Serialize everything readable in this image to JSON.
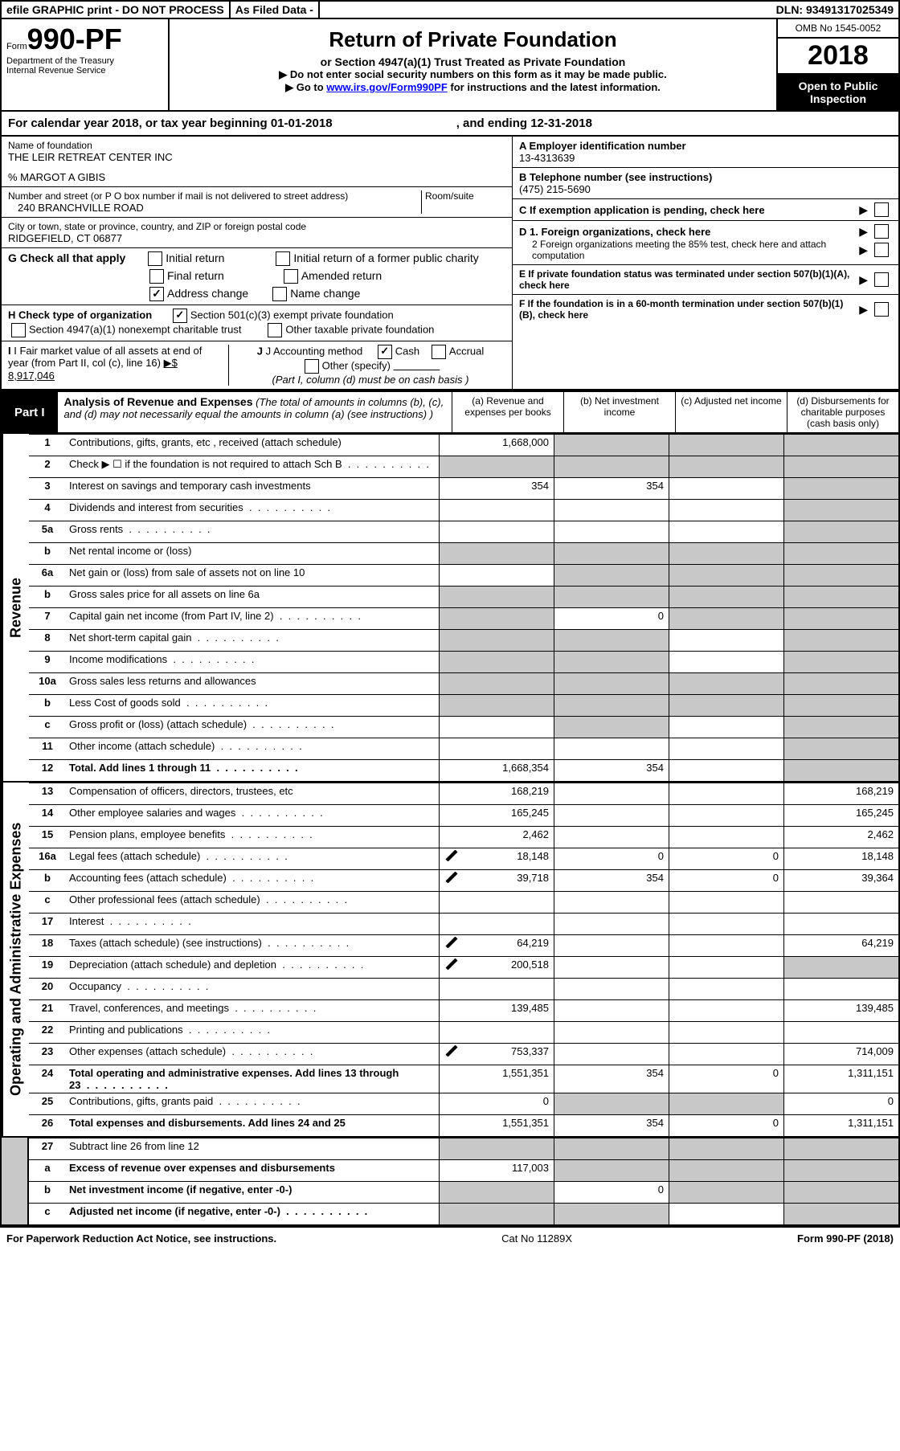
{
  "colors": {
    "ink": "#000000",
    "paper": "#ffffff",
    "shade": "#c8c8c8",
    "link": "#0000ff"
  },
  "top": {
    "efile": "efile GRAPHIC print - DO NOT PROCESS",
    "asfiled": "As Filed Data -",
    "dln": "DLN: 93491317025349"
  },
  "head": {
    "form_prefix": "Form",
    "form_no": "990-PF",
    "dept1": "Department of the Treasury",
    "dept2": "Internal Revenue Service",
    "title": "Return of Private Foundation",
    "subtitle": "or Section 4947(a)(1) Trust Treated as Private Foundation",
    "instr1": "▶ Do not enter social security numbers on this form as it may be made public.",
    "instr2_pre": "▶ Go to ",
    "instr2_link": "www.irs.gov/Form990PF",
    "instr2_post": " for instructions and the latest information.",
    "omb": "OMB No  1545-0052",
    "year": "2018",
    "open": "Open to Public Inspection"
  },
  "cal": {
    "pre": "For calendar year 2018, or tax year beginning ",
    "begin": "01-01-2018",
    "mid": ", and ending ",
    "end": "12-31-2018"
  },
  "id_left": {
    "name_lbl": "Name of foundation",
    "name1": "THE LEIR RETREAT CENTER INC",
    "name2": "% MARGOT A GIBIS",
    "street_lbl": "Number and street (or P O  box number if mail is not delivered to street address)",
    "room_lbl": "Room/suite",
    "street": "240 BRANCHVILLE ROAD",
    "city_lbl": "City or town, state or province, country, and ZIP or foreign postal code",
    "city": "RIDGEFIELD, CT  06877"
  },
  "id_right": {
    "a_lbl": "A Employer identification number",
    "a_val": "13-4313639",
    "b_lbl": "B Telephone number (see instructions)",
    "b_val": "(475) 215-5690",
    "c_lbl": "C  If exemption application is pending, check here",
    "d1": "D 1. Foreign organizations, check here",
    "d2": "2  Foreign organizations meeting the 85% test, check here and attach computation",
    "e": "E  If private foundation status was terminated under section 507(b)(1)(A), check here",
    "f": "F  If the foundation is in a 60-month termination under section 507(b)(1)(B), check here"
  },
  "g": {
    "label": "G Check all that apply",
    "initial": "Initial return",
    "initial_former": "Initial return of a former public charity",
    "final": "Final return",
    "amended": "Amended return",
    "address": "Address change",
    "address_checked": "✓",
    "name": "Name change"
  },
  "h": {
    "label": "H Check type of organization",
    "s501": "Section 501(c)(3) exempt private foundation",
    "s501_checked": "✓",
    "s4947": "Section 4947(a)(1) nonexempt charitable trust",
    "other": "Other taxable private foundation"
  },
  "ij": {
    "i_lbl": "I Fair market value of all assets at end of year (from Part II, col  (c), line 16) ",
    "i_val": "▶$  8,917,046",
    "j_lbl": "J Accounting method",
    "cash": "Cash",
    "cash_checked": "✓",
    "accrual": "Accrual",
    "other": "Other (specify)",
    "note": "(Part I, column (d) must be on cash basis )"
  },
  "part1": {
    "tag": "Part I",
    "title": "Analysis of Revenue and Expenses",
    "note": " (The total of amounts in columns (b), (c), and (d) may not necessarily equal the amounts in column (a) (see instructions) )",
    "col_a": "(a)   Revenue and expenses per books",
    "col_b": "(b)  Net investment income",
    "col_c": "(c)  Adjusted net income",
    "col_d": "(d)  Disbursements for charitable purposes (cash basis only)"
  },
  "rev_label": "Revenue",
  "exp_label": "Operating and Administrative Expenses",
  "rows_rev": [
    {
      "n": "1",
      "d": "",
      "a": "1,668,000",
      "b": "",
      "c": "",
      "grey_b": true,
      "grey_c": true,
      "grey_d": true
    },
    {
      "n": "2",
      "d": "",
      "a": "",
      "b": "",
      "c": "",
      "dots": true,
      "grey_a": true,
      "grey_b": true,
      "grey_c": true,
      "grey_d": true
    },
    {
      "n": "3",
      "d": "",
      "a": "354",
      "b": "354",
      "c": "",
      "grey_d": true
    },
    {
      "n": "4",
      "d": "",
      "a": "",
      "b": "",
      "c": "",
      "dots": true,
      "grey_d": true
    },
    {
      "n": "5a",
      "d": "",
      "a": "",
      "b": "",
      "c": "",
      "dots": true,
      "grey_d": true
    },
    {
      "n": "b",
      "d": "",
      "a": "",
      "b": "",
      "c": "",
      "grey_a": true,
      "grey_b": true,
      "grey_c": true,
      "grey_d": true
    },
    {
      "n": "6a",
      "d": "",
      "a": "",
      "b": "",
      "c": "",
      "grey_b": true,
      "grey_c": true,
      "grey_d": true
    },
    {
      "n": "b",
      "d": "",
      "a": "",
      "b": "",
      "c": "",
      "grey_a": true,
      "grey_b": true,
      "grey_c": true,
      "grey_d": true
    },
    {
      "n": "7",
      "d": "",
      "a": "",
      "b": "0",
      "c": "",
      "dots": true,
      "grey_a": true,
      "grey_c": true,
      "grey_d": true
    },
    {
      "n": "8",
      "d": "",
      "a": "",
      "b": "",
      "c": "",
      "dots": true,
      "grey_a": true,
      "grey_b": true,
      "grey_d": true
    },
    {
      "n": "9",
      "d": "",
      "a": "",
      "b": "",
      "c": "",
      "dots": true,
      "grey_a": true,
      "grey_b": true,
      "grey_d": true
    },
    {
      "n": "10a",
      "d": "",
      "a": "",
      "b": "",
      "c": "",
      "grey_a": true,
      "grey_b": true,
      "grey_c": true,
      "grey_d": true
    },
    {
      "n": "b",
      "d": "",
      "a": "",
      "b": "",
      "c": "",
      "dots": true,
      "grey_a": true,
      "grey_b": true,
      "grey_c": true,
      "grey_d": true
    },
    {
      "n": "c",
      "d": "",
      "a": "",
      "b": "",
      "c": "",
      "dots": true,
      "grey_b": true,
      "grey_d": true
    },
    {
      "n": "11",
      "d": "",
      "a": "",
      "b": "",
      "c": "",
      "dots": true,
      "grey_d": true
    },
    {
      "n": "12",
      "d": "",
      "a": "1,668,354",
      "b": "354",
      "c": "",
      "dots": true,
      "bold": true,
      "grey_d": true
    }
  ],
  "rows_exp": [
    {
      "n": "13",
      "d": "168,219",
      "a": "168,219",
      "b": "",
      "c": ""
    },
    {
      "n": "14",
      "d": "165,245",
      "a": "165,245",
      "b": "",
      "c": "",
      "dots": true
    },
    {
      "n": "15",
      "d": "2,462",
      "a": "2,462",
      "b": "",
      "c": "",
      "dots": true
    },
    {
      "n": "16a",
      "d": "18,148",
      "a": "18,148",
      "b": "0",
      "c": "0",
      "dots": true,
      "icon": true
    },
    {
      "n": "b",
      "d": "39,364",
      "a": "39,718",
      "b": "354",
      "c": "0",
      "dots": true,
      "icon": true
    },
    {
      "n": "c",
      "d": "",
      "a": "",
      "b": "",
      "c": "",
      "dots": true
    },
    {
      "n": "17",
      "d": "",
      "a": "",
      "b": "",
      "c": "",
      "dots": true
    },
    {
      "n": "18",
      "d": "64,219",
      "a": "64,219",
      "b": "",
      "c": "",
      "dots": true,
      "icon": true
    },
    {
      "n": "19",
      "d": "",
      "a": "200,518",
      "b": "",
      "c": "",
      "dots": true,
      "icon": true,
      "grey_d": true
    },
    {
      "n": "20",
      "d": "",
      "a": "",
      "b": "",
      "c": "",
      "dots": true
    },
    {
      "n": "21",
      "d": "139,485",
      "a": "139,485",
      "b": "",
      "c": "",
      "dots": true
    },
    {
      "n": "22",
      "d": "",
      "a": "",
      "b": "",
      "c": "",
      "dots": true
    },
    {
      "n": "23",
      "d": "714,009",
      "a": "753,337",
      "b": "",
      "c": "",
      "dots": true,
      "icon": true
    },
    {
      "n": "24",
      "d": "1,311,151",
      "a": "1,551,351",
      "b": "354",
      "c": "0",
      "dots": true,
      "bold": true
    },
    {
      "n": "25",
      "d": "0",
      "a": "0",
      "b": "",
      "c": "",
      "dots": true,
      "grey_b": true,
      "grey_c": true
    },
    {
      "n": "26",
      "d": "1,311,151",
      "a": "1,551,351",
      "b": "354",
      "c": "0",
      "bold": true
    }
  ],
  "rows_bot": [
    {
      "n": "27",
      "d": "",
      "a": "",
      "b": "",
      "c": "",
      "grey_a": true,
      "grey_b": true,
      "grey_c": true,
      "grey_d": true
    },
    {
      "n": "a",
      "d": "",
      "a": "117,003",
      "b": "",
      "c": "",
      "bold": true,
      "grey_b": true,
      "grey_c": true,
      "grey_d": true
    },
    {
      "n": "b",
      "d": "",
      "a": "",
      "b": "0",
      "c": "",
      "bold": true,
      "grey_a": true,
      "grey_c": true,
      "grey_d": true
    },
    {
      "n": "c",
      "d": "",
      "a": "",
      "b": "",
      "c": "",
      "bold": true,
      "dots": true,
      "grey_a": true,
      "grey_b": true,
      "grey_d": true
    }
  ],
  "footer": {
    "left": "For Paperwork Reduction Act Notice, see instructions.",
    "mid": "Cat  No  11289X",
    "right": "Form 990-PF (2018)"
  }
}
